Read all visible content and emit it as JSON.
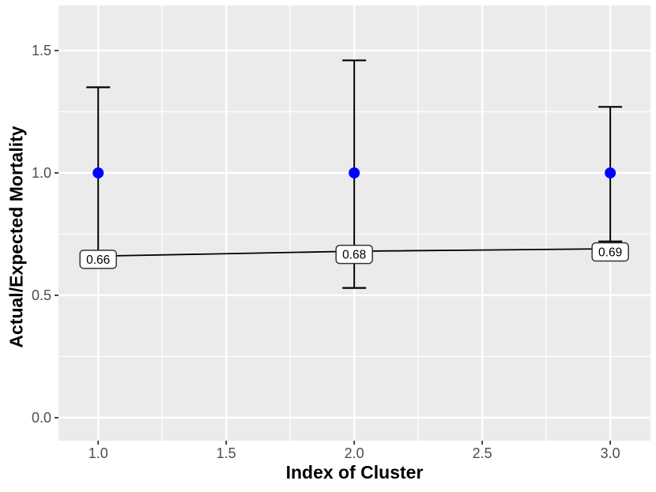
{
  "figure": {
    "background": "#FFFFFF",
    "description": "Scatter plot with error bars of Actual/Expected Mortality by cluster index"
  },
  "chart_data": {
    "type": "line",
    "title": "",
    "xlabel": "Index of Cluster",
    "ylabel": "Actual/Expected Mortality",
    "x": [
      1.0,
      2.0,
      3.0
    ],
    "series": [
      {
        "name": "reference-points",
        "style": "points",
        "color": "#0000FF",
        "values": [
          1.0,
          1.0,
          1.0
        ]
      },
      {
        "name": "actual-expected-ratio",
        "style": "line-with-labels",
        "color": "#000000",
        "values": [
          0.66,
          0.68,
          0.69
        ],
        "labels": [
          "0.66",
          "0.68",
          "0.69"
        ]
      }
    ],
    "errorbars": [
      {
        "x": 1.0,
        "center": 1.0,
        "ymin": 0.66,
        "ymax": 1.35
      },
      {
        "x": 2.0,
        "center": 1.0,
        "ymin": 0.53,
        "ymax": 1.46
      },
      {
        "x": 3.0,
        "center": 1.0,
        "ymin": 0.72,
        "ymax": 1.27
      }
    ],
    "x_ticks": {
      "values": [
        1.0,
        1.5,
        2.0,
        2.5,
        3.0
      ],
      "labels": [
        "1.0",
        "1.5",
        "2.0",
        "2.5",
        "3.0"
      ]
    },
    "y_ticks": {
      "values": [
        0.0,
        0.5,
        1.0,
        1.5
      ],
      "labels": [
        "0.0",
        "0.5",
        "1.0",
        "1.5"
      ]
    },
    "x_minor": [
      1.25,
      1.75,
      2.25,
      2.75
    ],
    "y_minor": [
      0.25,
      0.75,
      1.25
    ],
    "xlim": [
      0.845,
      3.157
    ],
    "ylim": [
      -0.094,
      1.684
    ],
    "grid": true,
    "legend": "none",
    "colors": {
      "panel_bg": "#EBEBEB",
      "grid": "#FFFFFF",
      "point": "#0000FF",
      "errorbar": "#000000",
      "trend_line": "#000000",
      "label_fill": "#FFFFFF",
      "label_border": "#333333",
      "label_text": "#000000",
      "tick_text": "#4D4D4D",
      "tick_mark": "#333333",
      "axis_title": "#000000"
    }
  }
}
